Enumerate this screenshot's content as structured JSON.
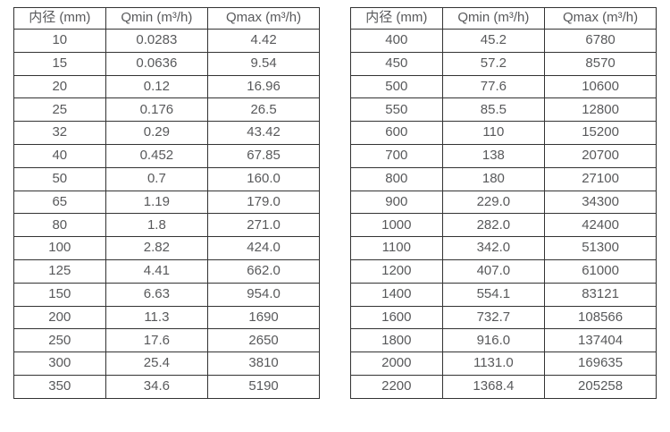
{
  "page": {
    "background_color": "#ffffff",
    "text_color": "#58595b",
    "border_color": "#333333"
  },
  "tables": [
    {
      "name": "flow-spec-table-small-diameters",
      "headers": [
        "内径 (mm)",
        "Qmin (m³/h)",
        "Qmax (m³/h)"
      ],
      "rows": [
        [
          "10",
          "0.0283",
          "4.42"
        ],
        [
          "15",
          "0.0636",
          "9.54"
        ],
        [
          "20",
          "0.12",
          "16.96"
        ],
        [
          "25",
          "0.176",
          "26.5"
        ],
        [
          "32",
          "0.29",
          "43.42"
        ],
        [
          "40",
          "0.452",
          "67.85"
        ],
        [
          "50",
          "0.7",
          "160.0"
        ],
        [
          "65",
          "1.19",
          "179.0"
        ],
        [
          "80",
          "1.8",
          "271.0"
        ],
        [
          "100",
          "2.82",
          "424.0"
        ],
        [
          "125",
          "4.41",
          "662.0"
        ],
        [
          "150",
          "6.63",
          "954.0"
        ],
        [
          "200",
          "11.3",
          "1690"
        ],
        [
          "250",
          "17.6",
          "2650"
        ],
        [
          "300",
          "25.4",
          "3810"
        ],
        [
          "350",
          "34.6",
          "5190"
        ]
      ]
    },
    {
      "name": "flow-spec-table-large-diameters",
      "headers": [
        "内径 (mm)",
        "Qmin (m³/h)",
        "Qmax (m³/h)"
      ],
      "rows": [
        [
          "400",
          "45.2",
          "6780"
        ],
        [
          "450",
          "57.2",
          "8570"
        ],
        [
          "500",
          "77.6",
          "10600"
        ],
        [
          "550",
          "85.5",
          "12800"
        ],
        [
          "600",
          "110",
          "15200"
        ],
        [
          "700",
          "138",
          "20700"
        ],
        [
          "800",
          "180",
          "27100"
        ],
        [
          "900",
          "229.0",
          "34300"
        ],
        [
          "1000",
          "282.0",
          "42400"
        ],
        [
          "1100",
          "342.0",
          "51300"
        ],
        [
          "1200",
          "407.0",
          "61000"
        ],
        [
          "1400",
          "554.1",
          "83121"
        ],
        [
          "1600",
          "732.7",
          "108566"
        ],
        [
          "1800",
          "916.0",
          "137404"
        ],
        [
          "2000",
          "1131.0",
          "169635"
        ],
        [
          "2200",
          "1368.4",
          "205258"
        ]
      ]
    }
  ]
}
